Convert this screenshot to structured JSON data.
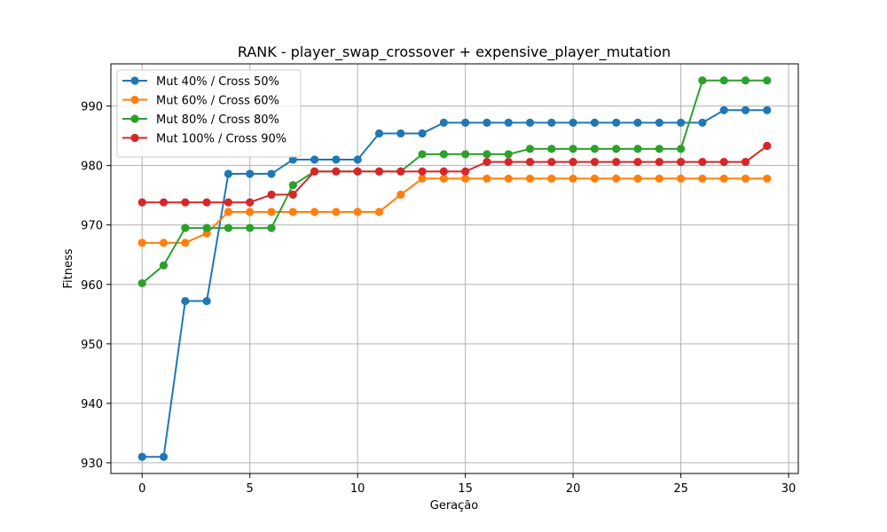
{
  "chart_data": {
    "type": "line",
    "title": "RANK - player_swap_crossover + expensive_player_mutation",
    "xlabel": "Geração",
    "ylabel": "Fitness",
    "xlim": [
      -1.45,
      30.45
    ],
    "ylim": [
      928.2,
      997.1
    ],
    "xticks": [
      0,
      5,
      10,
      15,
      20,
      25,
      30
    ],
    "yticks": [
      930,
      940,
      950,
      960,
      970,
      980,
      990
    ],
    "grid": true,
    "legend_position": "upper-left",
    "x": [
      0,
      1,
      2,
      3,
      4,
      5,
      6,
      7,
      8,
      9,
      10,
      11,
      12,
      13,
      14,
      15,
      16,
      17,
      18,
      19,
      20,
      21,
      22,
      23,
      24,
      25,
      26,
      27,
      28,
      29
    ],
    "series": [
      {
        "name": "Mut 40% / Cross 50%",
        "color": "#1f77b4",
        "values": [
          931.0,
          931.0,
          957.2,
          957.2,
          978.6,
          978.6,
          978.6,
          981.0,
          981.0,
          981.0,
          981.0,
          985.4,
          985.4,
          985.4,
          987.2,
          987.2,
          987.2,
          987.2,
          987.2,
          987.2,
          987.2,
          987.2,
          987.2,
          987.2,
          987.2,
          987.2,
          987.2,
          989.3,
          989.3,
          989.3
        ]
      },
      {
        "name": "Mut 60% / Cross 60%",
        "color": "#ff7f0e",
        "values": [
          967.0,
          967.0,
          967.0,
          968.6,
          972.2,
          972.2,
          972.2,
          972.2,
          972.2,
          972.2,
          972.2,
          972.2,
          975.1,
          977.8,
          977.8,
          977.8,
          977.8,
          977.8,
          977.8,
          977.8,
          977.8,
          977.8,
          977.8,
          977.8,
          977.8,
          977.8,
          977.8,
          977.8,
          977.8,
          977.8
        ]
      },
      {
        "name": "Mut 80% / Cross 80%",
        "color": "#2ca02c",
        "values": [
          960.2,
          963.2,
          969.5,
          969.5,
          969.5,
          969.5,
          969.5,
          976.7,
          979.0,
          979.0,
          979.0,
          979.0,
          979.0,
          981.9,
          981.9,
          981.9,
          981.9,
          981.9,
          982.8,
          982.8,
          982.8,
          982.8,
          982.8,
          982.8,
          982.8,
          982.8,
          994.3,
          994.3,
          994.3,
          994.3
        ]
      },
      {
        "name": "Mut 100% / Cross 90%",
        "color": "#d62728",
        "values": [
          973.8,
          973.8,
          973.8,
          973.8,
          973.8,
          973.8,
          975.1,
          975.1,
          979.0,
          979.0,
          979.0,
          979.0,
          979.0,
          979.0,
          979.0,
          979.0,
          980.6,
          980.6,
          980.6,
          980.6,
          980.6,
          980.6,
          980.6,
          980.6,
          980.6,
          980.6,
          980.6,
          980.6,
          980.6,
          983.3
        ]
      }
    ]
  }
}
